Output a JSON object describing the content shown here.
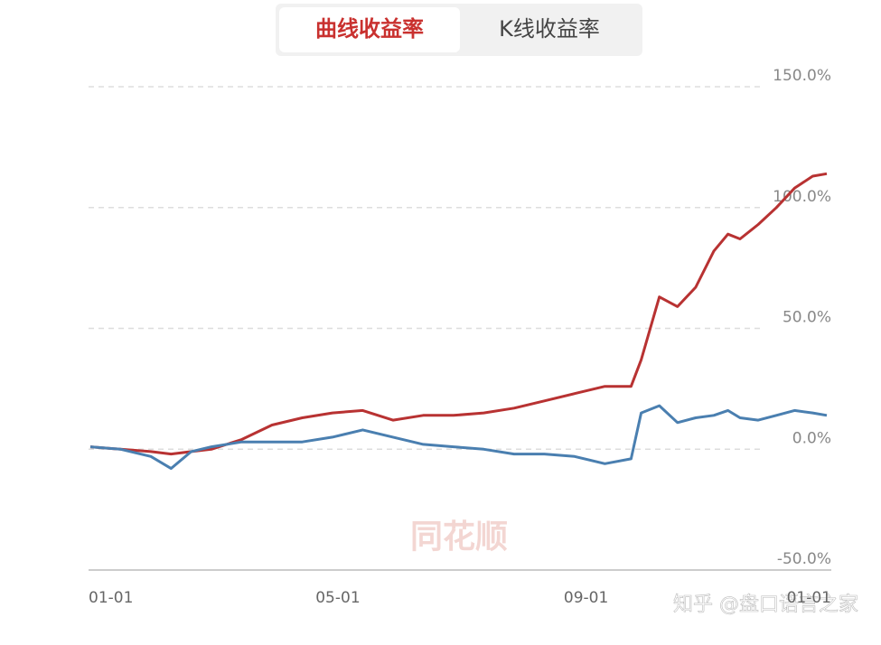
{
  "tabs": {
    "items": [
      "曲线收益率",
      "K线收益率"
    ],
    "active": 0
  },
  "chart_data": {
    "type": "line",
    "x": [
      0,
      15,
      30,
      40,
      50,
      60,
      75,
      90,
      105,
      120,
      135,
      150,
      165,
      180,
      195,
      210,
      225,
      240,
      255,
      268,
      273,
      282,
      291,
      300,
      309,
      316,
      322,
      331,
      340,
      349,
      358,
      365
    ],
    "series": [
      {
        "color": "#b83232",
        "values": [
          1,
          0,
          -1,
          -2,
          -1,
          0,
          4,
          10,
          13,
          15,
          16,
          12,
          14,
          14,
          15,
          17,
          20,
          23,
          26,
          26,
          37,
          63,
          59,
          67,
          82,
          89,
          87,
          93,
          100,
          108,
          113,
          114
        ]
      },
      {
        "color": "#4a7fb0",
        "values": [
          1,
          0,
          -3,
          -8,
          -1,
          1,
          3,
          3,
          3,
          5,
          8,
          5,
          2,
          1,
          0,
          -2,
          -2,
          -3,
          -6,
          -4,
          15,
          18,
          11,
          13,
          14,
          16,
          13,
          12,
          14,
          16,
          15,
          14
        ]
      }
    ],
    "xlim": [
      0,
      365
    ],
    "xticks": [
      {
        "value": 0,
        "label": "01-01"
      },
      {
        "value": 120,
        "label": "05-01"
      },
      {
        "value": 243,
        "label": "09-01"
      },
      {
        "value": 365,
        "label": "01-01"
      }
    ],
    "ylim": [
      -50,
      150
    ],
    "yticks": [
      {
        "value": -50,
        "label": "-50.0%"
      },
      {
        "value": 0,
        "label": "0.0%"
      },
      {
        "value": 50,
        "label": "50.0%"
      },
      {
        "value": 100,
        "label": "100.0%"
      },
      {
        "value": 150,
        "label": "150.0%"
      }
    ],
    "grid": true,
    "watermark": "同花顺",
    "credit": "知乎 @盘口语言之家"
  }
}
